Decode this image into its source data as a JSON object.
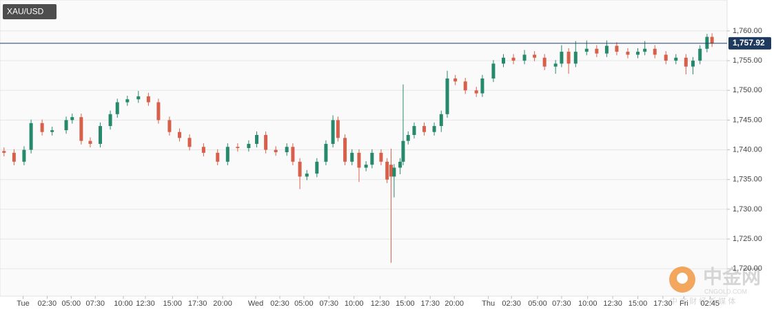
{
  "chart_data": {
    "type": "candlestick",
    "title": "XAU/USD",
    "x": [
      -1.9,
      -0.9,
      0.1,
      0.8,
      1.9,
      2.9,
      4.3,
      4.9,
      5.8,
      6.7,
      7.7,
      8.7,
      9.4,
      10.4,
      11.5,
      12.5,
      13.5,
      14.6,
      15.6,
      16.6,
      18.0,
      19.4,
      20.4,
      21.4,
      22.5,
      23.3,
      24.2,
      25.2,
      26.3,
      26.9,
      27.6,
      28.3,
      29.3,
      30.2,
      30.9,
      31.4,
      32.1,
      32.8,
      33.5,
      34.2,
      34.8,
      35.7,
      36.3,
      36.7,
      37.0,
      37.6,
      37.9,
      38.4,
      39.0,
      40.0,
      41.0,
      41.7,
      42.3,
      43.1,
      44.1,
      45.2,
      45.8,
      46.9,
      47.9,
      48.9,
      50.0,
      51.0,
      52.0,
      53.1,
      53.7,
      54.4,
      55.1,
      56.2,
      57.2,
      58.2,
      59.2,
      60.3,
      61.3,
      62.0,
      63.0,
      64.1,
      65.1,
      66.1,
      66.8,
      67.5,
      68.2,
      68.7
    ],
    "open": [
      1739.8,
      1739.5,
      1738,
      1740,
      1744.5,
      1743,
      1743.3,
      1745,
      1745.5,
      1741.5,
      1741,
      1744,
      1746,
      1748,
      1748.5,
      1749,
      1748,
      1745,
      1743,
      1742,
      1740.5,
      1739.5,
      1738,
      1740.5,
      1740.3,
      1741,
      1742.5,
      1740,
      1739.6,
      1740.5,
      1738,
      1735.5,
      1736,
      1738,
      1741,
      1745,
      1742,
      1738,
      1739.5,
      1737,
      1737.5,
      1739.5,
      1738,
      1737.5,
      1735.5,
      1737,
      1738,
      1741.5,
      1742.5,
      1744,
      1743,
      1744,
      1746,
      1752,
      1751.5,
      1750,
      1749.5,
      1752,
      1754.5,
      1755.5,
      1755,
      1756,
      1755.5,
      1754,
      1754.5,
      1756.5,
      1754.5,
      1756.5,
      1757,
      1756.2,
      1757.5,
      1756.5,
      1756,
      1756.5,
      1757,
      1756,
      1755,
      1755.5,
      1754,
      1755,
      1757,
      1759
    ],
    "high": [
      1740.4,
      1740.1,
      1740.6,
      1745.1,
      1745.1,
      1743.9,
      1745.6,
      1746.1,
      1746.1,
      1742.1,
      1744.6,
      1746.6,
      1748.6,
      1749.1,
      1749.9,
      1749.6,
      1748.6,
      1745.6,
      1743.6,
      1742.6,
      1741.1,
      1740.1,
      1741.1,
      1741.1,
      1741.6,
      1743.1,
      1743.1,
      1740.6,
      1741.1,
      1741.1,
      1738.6,
      1736.6,
      1738.6,
      1741.6,
      1745.8,
      1745.6,
      1742.6,
      1740.1,
      1740.1,
      1738.1,
      1740.1,
      1740.1,
      1738.6,
      1740.2,
      1737.6,
      1738.6,
      1751,
      1743.1,
      1744.6,
      1744.6,
      1744.6,
      1746.6,
      1753.3,
      1752.6,
      1752.1,
      1750.6,
      1752.6,
      1755.1,
      1756.1,
      1756.1,
      1756.8,
      1756.6,
      1756.1,
      1755.1,
      1757.6,
      1757.1,
      1758.3,
      1758.4,
      1757.6,
      1758.4,
      1758.1,
      1757.1,
      1757.1,
      1758.3,
      1757.6,
      1756.6,
      1756.1,
      1756.1,
      1755.6,
      1757.6,
      1759.5,
      1759.6
    ],
    "low": [
      1738.9,
      1737.4,
      1737.4,
      1739.4,
      1742.4,
      1742.4,
      1742.7,
      1744.4,
      1740.9,
      1740.4,
      1740.4,
      1743.4,
      1745.4,
      1747.4,
      1747.9,
      1747.4,
      1744.4,
      1742.4,
      1741.4,
      1739.9,
      1738.9,
      1737.4,
      1737.4,
      1739.7,
      1739.7,
      1740.4,
      1739.4,
      1739,
      1739,
      1737.4,
      1733.4,
      1734.9,
      1735.4,
      1737.4,
      1740.4,
      1741.4,
      1737.4,
      1737.4,
      1734.6,
      1736.4,
      1736.9,
      1737.4,
      1734.4,
      1721,
      1732,
      1735.9,
      1737.4,
      1740.9,
      1741.9,
      1742.4,
      1742.4,
      1743,
      1745.4,
      1750.9,
      1749.4,
      1748.9,
      1748.9,
      1751.4,
      1753.9,
      1754.4,
      1754.4,
      1754.9,
      1753.4,
      1752.8,
      1753.9,
      1752.8,
      1753.9,
      1755.9,
      1755.6,
      1755.6,
      1755.9,
      1755.4,
      1755.4,
      1755.9,
      1755.4,
      1754.4,
      1754.4,
      1752.7,
      1752.7,
      1754.4,
      1756.4,
      1757.3
    ],
    "close": [
      1739.5,
      1738,
      1740,
      1744.5,
      1743,
      1743.3,
      1745,
      1745.5,
      1741.5,
      1741,
      1744,
      1746,
      1748,
      1748.5,
      1749,
      1748,
      1745,
      1743,
      1742,
      1740.5,
      1739.5,
      1738,
      1740.5,
      1740.3,
      1741,
      1742.5,
      1740,
      1739.6,
      1740.5,
      1738,
      1735.5,
      1736,
      1738,
      1741,
      1745,
      1742,
      1738,
      1739.5,
      1737,
      1737.5,
      1739.5,
      1738,
      1735,
      1735.5,
      1737,
      1738,
      1741.5,
      1742.5,
      1744,
      1743,
      1744,
      1746,
      1752,
      1751.5,
      1750,
      1749.5,
      1752,
      1754.5,
      1755.5,
      1755,
      1756,
      1755.5,
      1754,
      1754.5,
      1756.5,
      1754.5,
      1756.5,
      1757,
      1756.2,
      1757.5,
      1756.5,
      1756,
      1756.5,
      1757,
      1756,
      1755,
      1755.5,
      1754,
      1755,
      1757,
      1759,
      1757.92
    ],
    "up_color": "#26896b",
    "down_color": "#d8604b",
    "xlim": [
      -2.3,
      70.2
    ],
    "ylim": [
      1715.4,
      1765.2
    ],
    "xticks": [
      {
        "value": 0,
        "label": "Tue"
      },
      {
        "value": 2.4,
        "label": "02:30"
      },
      {
        "value": 4.8,
        "label": "05:00"
      },
      {
        "value": 7.2,
        "label": "07:30"
      },
      {
        "value": 10.0,
        "label": "10:00"
      },
      {
        "value": 12.2,
        "label": "12:30"
      },
      {
        "value": 14.9,
        "label": "15:00"
      },
      {
        "value": 17.4,
        "label": "17:30"
      },
      {
        "value": 19.9,
        "label": "20:00"
      },
      {
        "value": 23.2,
        "label": "Wed"
      },
      {
        "value": 25.6,
        "label": "02:30"
      },
      {
        "value": 28.0,
        "label": "05:00"
      },
      {
        "value": 30.5,
        "label": "07:30"
      },
      {
        "value": 33.0,
        "label": "10:00"
      },
      {
        "value": 35.6,
        "label": "12:30"
      },
      {
        "value": 38.1,
        "label": "15:00"
      },
      {
        "value": 40.6,
        "label": "17:30"
      },
      {
        "value": 43.0,
        "label": "20:00"
      },
      {
        "value": 46.4,
        "label": "Thu"
      },
      {
        "value": 48.7,
        "label": "02:30"
      },
      {
        "value": 51.3,
        "label": "05:00"
      },
      {
        "value": 53.7,
        "label": "07:30"
      },
      {
        "value": 56.3,
        "label": "10:00"
      },
      {
        "value": 58.8,
        "label": "12:30"
      },
      {
        "value": 61.3,
        "label": "15:00"
      },
      {
        "value": 63.8,
        "label": "17:30"
      },
      {
        "value": 65.9,
        "label": "Fri"
      },
      {
        "value": 68.5,
        "label": "02:45"
      }
    ],
    "yticks": [
      {
        "value": 1720,
        "label": "1,720.00"
      },
      {
        "value": 1725,
        "label": "1,725.00"
      },
      {
        "value": 1730,
        "label": "1,730.00"
      },
      {
        "value": 1735,
        "label": "1,735.00"
      },
      {
        "value": 1740,
        "label": "1,740.00"
      },
      {
        "value": 1745,
        "label": "1,745.00"
      },
      {
        "value": 1750,
        "label": "1,750.00"
      },
      {
        "value": 1755,
        "label": "1,755.00"
      },
      {
        "value": 1760,
        "label": "1,760.00"
      }
    ],
    "grid": true,
    "price_line": {
      "value": 1757.92,
      "label": "1,757.92",
      "color": "#1e3a5f"
    }
  },
  "watermark": {
    "brand": "中金网",
    "site": "CNGOLD.COM",
    "slogan": "中 文 财 经 新 媒 体"
  }
}
